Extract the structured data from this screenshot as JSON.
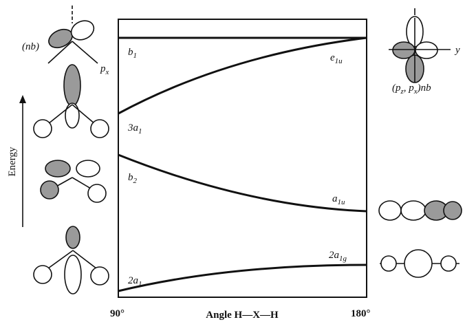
{
  "axis": {
    "x_label": "Angle H—X—H",
    "left": "90°",
    "right": "180°",
    "y_label": "Energy"
  },
  "levels": [
    {
      "left": [
        "b",
        "1"
      ],
      "right": [
        "e",
        "1u"
      ]
    },
    {
      "left": [
        "3a",
        "1"
      ]
    },
    {
      "left": [
        "b",
        "2"
      ],
      "right": [
        "a",
        "1u"
      ]
    },
    {
      "left": [
        "2a",
        "1"
      ],
      "right": [
        "2a",
        "1g"
      ]
    }
  ],
  "orbitals": {
    "nb_label": "(nb)",
    "px_label": [
      "p",
      "x"
    ],
    "right_top_label": [
      "(p",
      "z",
      ", p",
      "x",
      ")nb"
    ],
    "y_label": "y"
  }
}
